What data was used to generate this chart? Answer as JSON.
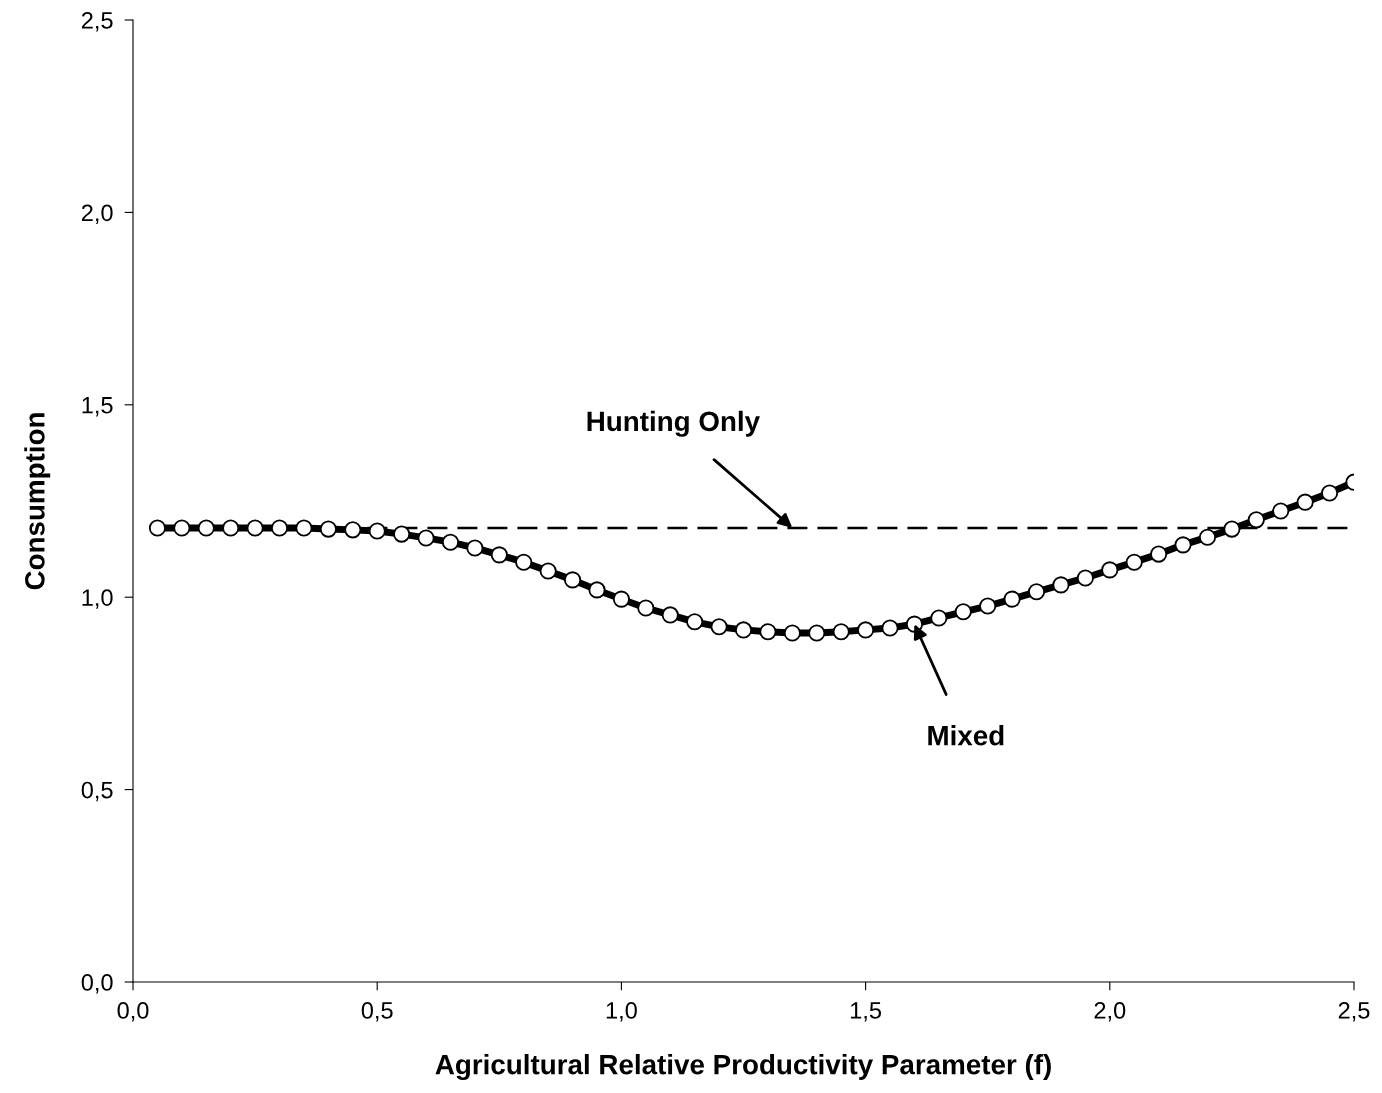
{
  "chart_data": {
    "type": "line",
    "xlabel": "Agricultural Relative Productivity Parameter (f)",
    "ylabel": "Consumption",
    "x": [
      0.05,
      0.1,
      0.15,
      0.2,
      0.25,
      0.3,
      0.35,
      0.4,
      0.45,
      0.5,
      0.55,
      0.6,
      0.65,
      0.7,
      0.75,
      0.8,
      0.85,
      0.9,
      0.95,
      1.0,
      1.05,
      1.1,
      1.15,
      1.2,
      1.25,
      1.3,
      1.35,
      1.4,
      1.45,
      1.5,
      1.55,
      1.6,
      1.65,
      1.7,
      1.75,
      1.8,
      1.85,
      1.9,
      1.95,
      2.0,
      2.05,
      2.1,
      2.15,
      2.2,
      2.25,
      2.3,
      2.35,
      2.4,
      2.45,
      2.5
    ],
    "series": [
      {
        "color": "#000000",
        "marker": "circle",
        "line_style": "solid",
        "values": [
          1.18,
          1.18,
          1.18,
          1.18,
          1.18,
          1.18,
          1.18,
          1.177,
          1.175,
          1.172,
          1.164,
          1.154,
          1.143,
          1.128,
          1.11,
          1.091,
          1.068,
          1.045,
          1.019,
          0.995,
          0.972,
          0.954,
          0.936,
          0.923,
          0.915,
          0.91,
          0.907,
          0.907,
          0.91,
          0.915,
          0.92,
          0.93,
          0.946,
          0.962,
          0.977,
          0.995,
          1.014,
          1.032,
          1.05,
          1.071,
          1.091,
          1.112,
          1.136,
          1.156,
          1.177,
          1.201,
          1.224,
          1.247,
          1.271,
          1.299
        ]
      },
      {
        "color": "#000000",
        "marker": "none",
        "line_style": "dashed",
        "x": [
          0.05,
          2.5
        ],
        "values": [
          1.18,
          1.18
        ]
      }
    ],
    "annotations": [
      {
        "text": "Hunting Only",
        "x": 1.35,
        "y": 1.18
      },
      {
        "text": "Mixed",
        "x": 1.6,
        "y": 0.93
      }
    ],
    "xlim": [
      0,
      2.5
    ],
    "ylim": [
      0,
      2.5
    ],
    "xticks": [
      {
        "value": 0,
        "label": "0,0"
      },
      {
        "value": 0.5,
        "label": "0,5"
      },
      {
        "value": 1,
        "label": "1,0"
      },
      {
        "value": 1.5,
        "label": "1,5"
      },
      {
        "value": 2,
        "label": "2,0"
      },
      {
        "value": 2.5,
        "label": "2,5"
      }
    ],
    "yticks": [
      {
        "value": 0,
        "label": "0,0"
      },
      {
        "value": 0.5,
        "label": "0,5"
      },
      {
        "value": 1,
        "label": "1,0"
      },
      {
        "value": 1.5,
        "label": "1,5"
      },
      {
        "value": 2,
        "label": "2,0"
      },
      {
        "value": 2.5,
        "label": "2,5"
      }
    ],
    "grid": false,
    "legend": false
  }
}
